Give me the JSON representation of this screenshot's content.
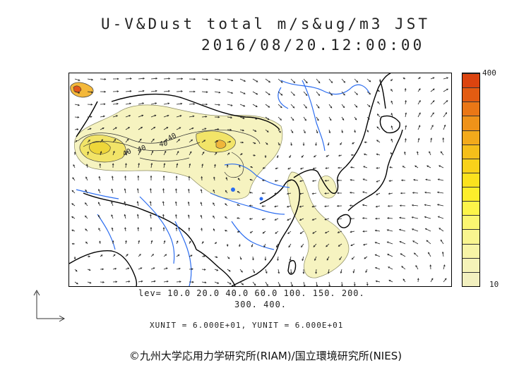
{
  "title": {
    "line1": "U-V&Dust total m/s&ug/m3 JST",
    "line2": "2016/08/20.12:00:00"
  },
  "colorbar": {
    "max_label": "400",
    "min_label": "10",
    "colors": [
      "#f2f0bf",
      "#f5f3b8",
      "#f7f4a6",
      "#f9f58f",
      "#fbf571",
      "#fdf449",
      "#fdee2b",
      "#fbe21e",
      "#f9d21a",
      "#f6bf1a",
      "#f3aa1b",
      "#ef9219",
      "#ea7716",
      "#e35c12",
      "#dc440f"
    ]
  },
  "contour_levels": {
    "line1": "lev= 10.0 20.0 40.0 60.0 100. 150. 200.",
    "line2": "300. 400."
  },
  "units_text": "XUNIT = 6.000E+01, YUNIT = 6.000E+01",
  "contour_labels": {
    "a": "40",
    "b": "40",
    "c": "40",
    "d": "40"
  },
  "copyright": "©九州大学応用力学研究所(RIAM)/国立環境研究所(NIES)",
  "colors": {
    "coast": "#000000",
    "river": "#2a6cf0",
    "arrow": "#222222"
  }
}
